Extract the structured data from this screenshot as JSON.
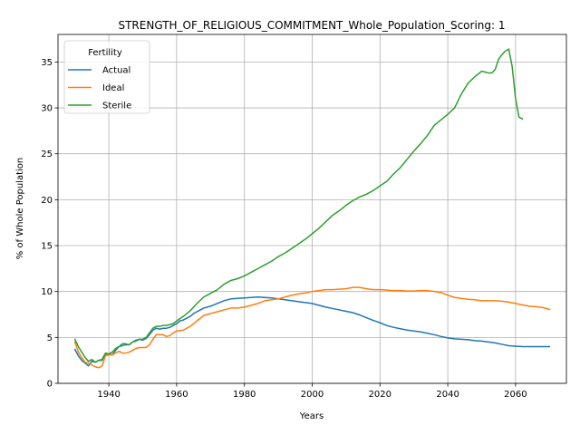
{
  "chart_data": {
    "type": "line",
    "title": "STRENGTH_OF_RELIGIOUS_COMMITMENT_Whole_Population_Scoring: 1",
    "xlabel": "Years",
    "ylabel": "% of Whole Population",
    "xlim": [
      1925,
      2075
    ],
    "ylim": [
      0,
      38
    ],
    "xticks": [
      1940,
      1960,
      1980,
      2000,
      2020,
      2040,
      2060
    ],
    "yticks": [
      0,
      5,
      10,
      15,
      20,
      25,
      30,
      35
    ],
    "grid": true,
    "legend": {
      "title": "Fertility",
      "placement": "upper-left"
    },
    "series": [
      {
        "name": "Actual",
        "color": "#1f77b4",
        "x": [
          1930,
          1931,
          1932,
          1933,
          1934,
          1935,
          1936,
          1937,
          1938,
          1939,
          1940,
          1941,
          1942,
          1943,
          1944,
          1945,
          1946,
          1947,
          1948,
          1949,
          1950,
          1951,
          1952,
          1953,
          1954,
          1955,
          1956,
          1957,
          1958,
          1959,
          1960,
          1961,
          1962,
          1963,
          1964,
          1965,
          1966,
          1967,
          1968,
          1969,
          1970,
          1972,
          1974,
          1976,
          1978,
          1980,
          1982,
          1984,
          1986,
          1988,
          1990,
          1992,
          1994,
          1996,
          1998,
          2000,
          2002,
          2004,
          2006,
          2008,
          2010,
          2012,
          2014,
          2016,
          2018,
          2020,
          2022,
          2024,
          2026,
          2028,
          2030,
          2032,
          2034,
          2036,
          2038,
          2040,
          2042,
          2044,
          2046,
          2048,
          2050,
          2052,
          2054,
          2056,
          2058,
          2060,
          2062,
          2064,
          2066,
          2068,
          2070
        ],
        "values": [
          3.7,
          3.0,
          2.5,
          2.2,
          1.9,
          2.4,
          2.3,
          2.5,
          2.5,
          3.2,
          3.2,
          3.1,
          3.6,
          4.0,
          4.3,
          4.3,
          4.2,
          4.5,
          4.7,
          4.8,
          4.7,
          4.9,
          5.3,
          5.8,
          6.0,
          5.9,
          6.0,
          6.0,
          6.1,
          6.3,
          6.5,
          6.8,
          6.9,
          7.1,
          7.3,
          7.6,
          7.8,
          8.0,
          8.2,
          8.3,
          8.4,
          8.7,
          9.0,
          9.2,
          9.25,
          9.3,
          9.35,
          9.4,
          9.35,
          9.3,
          9.2,
          9.1,
          9.0,
          8.9,
          8.8,
          8.7,
          8.5,
          8.3,
          8.15,
          8.0,
          7.85,
          7.7,
          7.45,
          7.15,
          6.85,
          6.6,
          6.3,
          6.1,
          5.95,
          5.8,
          5.7,
          5.6,
          5.45,
          5.3,
          5.1,
          4.95,
          4.85,
          4.8,
          4.75,
          4.65,
          4.6,
          4.5,
          4.4,
          4.25,
          4.1,
          4.05,
          4.0,
          4.0,
          4.0,
          4.0,
          4.0
        ]
      },
      {
        "name": "Ideal",
        "color": "#ff7f0e",
        "x": [
          1930,
          1931,
          1932,
          1933,
          1934,
          1935,
          1936,
          1937,
          1938,
          1939,
          1940,
          1941,
          1942,
          1943,
          1944,
          1945,
          1946,
          1947,
          1948,
          1949,
          1950,
          1951,
          1952,
          1953,
          1954,
          1955,
          1956,
          1957,
          1958,
          1959,
          1960,
          1962,
          1964,
          1966,
          1968,
          1970,
          1972,
          1974,
          1976,
          1978,
          1980,
          1982,
          1984,
          1986,
          1988,
          1990,
          1992,
          1994,
          1996,
          1998,
          2000,
          2002,
          2004,
          2006,
          2008,
          2010,
          2012,
          2014,
          2016,
          2018,
          2020,
          2022,
          2024,
          2026,
          2028,
          2030,
          2032,
          2034,
          2036,
          2038,
          2040,
          2042,
          2044,
          2046,
          2048,
          2050,
          2052,
          2054,
          2056,
          2058,
          2060,
          2062,
          2064,
          2066,
          2068,
          2070
        ],
        "values": [
          4.5,
          3.4,
          2.8,
          2.3,
          2.2,
          2.0,
          1.8,
          1.7,
          1.9,
          3.0,
          3.1,
          3.1,
          3.3,
          3.5,
          3.3,
          3.3,
          3.4,
          3.6,
          3.8,
          3.9,
          3.9,
          3.9,
          4.2,
          4.8,
          5.3,
          5.3,
          5.3,
          5.1,
          5.2,
          5.5,
          5.7,
          5.8,
          6.2,
          6.8,
          7.4,
          7.6,
          7.8,
          8.0,
          8.2,
          8.2,
          8.3,
          8.5,
          8.7,
          9.0,
          9.1,
          9.2,
          9.4,
          9.6,
          9.75,
          9.85,
          10.0,
          10.1,
          10.2,
          10.2,
          10.25,
          10.3,
          10.45,
          10.45,
          10.3,
          10.2,
          10.2,
          10.15,
          10.1,
          10.1,
          10.05,
          10.05,
          10.1,
          10.1,
          10.0,
          9.9,
          9.6,
          9.35,
          9.25,
          9.15,
          9.1,
          9.0,
          9.0,
          9.0,
          8.95,
          8.85,
          8.7,
          8.55,
          8.4,
          8.35,
          8.25,
          8.05
        ]
      },
      {
        "name": "Sterile",
        "color": "#2ca02c",
        "x": [
          1930,
          1931,
          1932,
          1933,
          1934,
          1935,
          1936,
          1937,
          1938,
          1939,
          1940,
          1941,
          1942,
          1943,
          1944,
          1945,
          1946,
          1947,
          1948,
          1949,
          1950,
          1951,
          1952,
          1953,
          1954,
          1955,
          1956,
          1957,
          1958,
          1959,
          1960,
          1962,
          1964,
          1966,
          1968,
          1970,
          1972,
          1974,
          1976,
          1978,
          1980,
          1982,
          1984,
          1986,
          1988,
          1990,
          1992,
          1994,
          1996,
          1998,
          2000,
          2002,
          2004,
          2006,
          2008,
          2010,
          2012,
          2014,
          2016,
          2018,
          2020,
          2022,
          2024,
          2026,
          2028,
          2030,
          2032,
          2034,
          2036,
          2038,
          2040,
          2042,
          2044,
          2046,
          2048,
          2050,
          2052,
          2053,
          2054,
          2055,
          2056,
          2057,
          2058,
          2059,
          2060,
          2061,
          2062
        ],
        "values": [
          4.8,
          4.0,
          3.4,
          2.8,
          2.4,
          2.6,
          2.3,
          2.5,
          2.6,
          3.3,
          3.2,
          3.4,
          3.8,
          4.0,
          4.1,
          4.2,
          4.2,
          4.5,
          4.6,
          4.8,
          4.8,
          5.0,
          5.5,
          6.0,
          6.2,
          6.2,
          6.3,
          6.3,
          6.4,
          6.5,
          6.8,
          7.3,
          7.9,
          8.7,
          9.4,
          9.8,
          10.2,
          10.8,
          11.2,
          11.4,
          11.7,
          12.1,
          12.5,
          12.9,
          13.3,
          13.8,
          14.2,
          14.7,
          15.2,
          15.7,
          16.3,
          16.9,
          17.6,
          18.3,
          18.8,
          19.4,
          19.9,
          20.3,
          20.6,
          21.0,
          21.5,
          22.0,
          22.8,
          23.5,
          24.4,
          25.3,
          26.1,
          27.0,
          28.1,
          28.7,
          29.3,
          30.0,
          31.5,
          32.7,
          33.4,
          34.0,
          33.8,
          33.8,
          34.2,
          35.3,
          35.8,
          36.2,
          36.4,
          34.5,
          31.0,
          29.0,
          28.8
        ]
      }
    ]
  }
}
